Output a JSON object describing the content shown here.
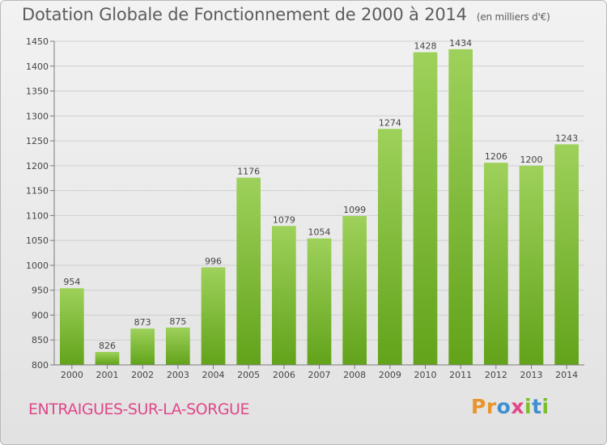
{
  "title": "Dotation Globale de Fonctionnement de 2000 à 2014",
  "subtitle": "(en milliers d'€)",
  "footer": {
    "commune": "ENTRAIGUES-SUR-LA-SORGUE",
    "logo_letters": [
      "P",
      "r",
      "o",
      "x",
      "i",
      "t",
      "i"
    ],
    "logo_colors": [
      "#e8952b",
      "#e8952b",
      "#3f8fd0",
      "#e0478a",
      "#7bbf2a",
      "#3f8fd0",
      "#7bbf2a"
    ]
  },
  "colors": {
    "bar_top": "#9ed15b",
    "bar_bottom": "#62a31a",
    "grid": "#cfcfcf",
    "axis": "#7a7a7a"
  },
  "chart_data": {
    "type": "bar",
    "title": "Dotation Globale de Fonctionnement de 2000 à 2014",
    "subtitle": "(en milliers d'€)",
    "xlabel": "",
    "ylabel": "",
    "categories": [
      "2000",
      "2001",
      "2002",
      "2003",
      "2004",
      "2005",
      "2006",
      "2007",
      "2008",
      "2009",
      "2010",
      "2011",
      "2012",
      "2013",
      "2014"
    ],
    "values": [
      954,
      826,
      873,
      875,
      996,
      1176,
      1079,
      1054,
      1099,
      1274,
      1428,
      1434,
      1206,
      1200,
      1243
    ],
    "ylim": [
      800,
      1450
    ],
    "yticks": [
      800,
      850,
      900,
      950,
      1000,
      1050,
      1100,
      1150,
      1200,
      1250,
      1300,
      1350,
      1400,
      1450
    ],
    "grid": true,
    "legend": "none"
  }
}
